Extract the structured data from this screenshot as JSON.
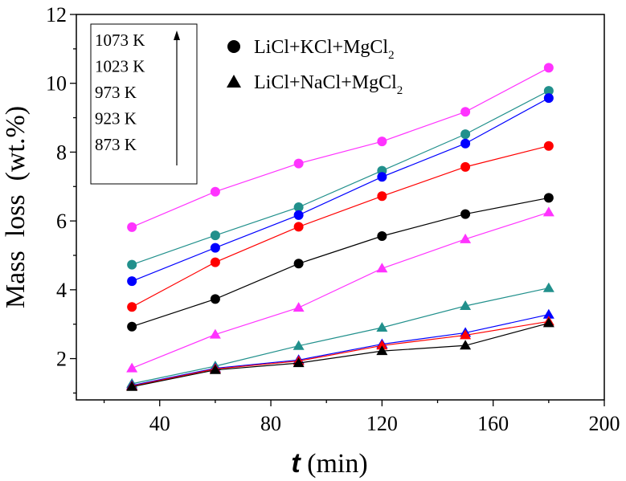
{
  "chart_data": {
    "type": "line",
    "xlabel_italic": "t",
    "xlabel_rest": " (min)",
    "ylabel": "Mass  loss  (wt.%)",
    "xlim": [
      10,
      200
    ],
    "ylim": [
      0.8,
      12
    ],
    "xticks": [
      40,
      80,
      120,
      160,
      200
    ],
    "yticks": [
      2,
      4,
      6,
      8,
      10,
      12
    ],
    "x": [
      30,
      60,
      90,
      120,
      150,
      180
    ],
    "legend": [
      {
        "marker": "circle",
        "label_main": "LiCl+KCl+MgCl",
        "label_sub": "2"
      },
      {
        "marker": "triangle",
        "label_main": "LiCl+NaCl+MgCl",
        "label_sub": "2"
      }
    ],
    "temperatures": [
      "1073 K",
      "1023 K",
      "973 K",
      "923 K",
      "873 K"
    ],
    "series": [
      {
        "marker": "circle",
        "color": "#ff33ff",
        "values": [
          5.82,
          6.85,
          7.67,
          8.31,
          9.17,
          10.45
        ]
      },
      {
        "marker": "circle",
        "color": "#21908c",
        "values": [
          4.73,
          5.58,
          6.4,
          7.46,
          8.52,
          9.78
        ]
      },
      {
        "marker": "circle",
        "color": "#0000ff",
        "values": [
          4.25,
          5.22,
          6.17,
          7.28,
          8.25,
          9.57
        ]
      },
      {
        "marker": "circle",
        "color": "#ff0000",
        "values": [
          3.5,
          4.8,
          5.83,
          6.72,
          7.57,
          8.18
        ]
      },
      {
        "marker": "circle",
        "color": "#000000",
        "values": [
          2.93,
          3.73,
          4.76,
          5.56,
          6.2,
          6.67
        ]
      },
      {
        "marker": "triangle",
        "color": "#ff33ff",
        "values": [
          1.72,
          2.7,
          3.48,
          4.62,
          5.47,
          6.25
        ]
      },
      {
        "marker": "triangle",
        "color": "#21908c",
        "values": [
          1.27,
          1.78,
          2.37,
          2.9,
          3.53,
          4.05
        ]
      },
      {
        "marker": "triangle",
        "color": "#0000ff",
        "values": [
          1.22,
          1.72,
          1.96,
          2.42,
          2.75,
          3.28
        ]
      },
      {
        "marker": "triangle",
        "color": "#ff0000",
        "values": [
          1.2,
          1.7,
          1.93,
          2.38,
          2.68,
          3.08
        ]
      },
      {
        "marker": "triangle",
        "color": "#000000",
        "values": [
          1.18,
          1.67,
          1.87,
          2.22,
          2.38,
          3.03
        ]
      }
    ]
  }
}
